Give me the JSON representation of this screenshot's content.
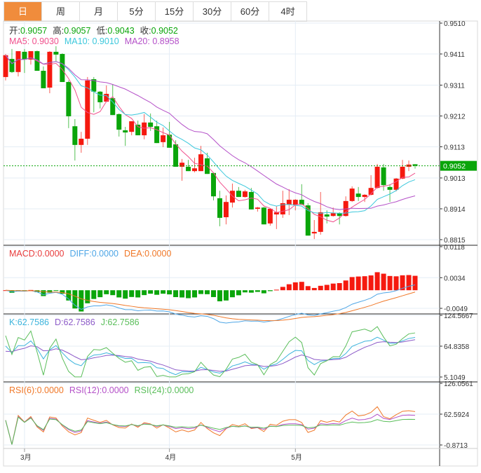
{
  "tabs": [
    {
      "label": "日",
      "active": true
    },
    {
      "label": "周"
    },
    {
      "label": "月"
    },
    {
      "label": "5分"
    },
    {
      "label": "15分"
    },
    {
      "label": "30分"
    },
    {
      "label": "60分"
    },
    {
      "label": "4时"
    }
  ],
  "ohlc_legend": {
    "open_label": "开:",
    "open": "0.9057",
    "high_label": "高:",
    "high": "0.9057",
    "low_label": "低:",
    "low": "0.9043",
    "close_label": "收:",
    "close": "0.9052"
  },
  "ma_legend": {
    "ma5": "MA5: 0.9030",
    "ma10": "MA10: 0.9010",
    "ma20": "MA20: 0.8958"
  },
  "macd_legend": {
    "macd": "MACD:0.0000",
    "diff": "DIFF:0.0000",
    "dea": "DEA:0.0000"
  },
  "kdj_legend": {
    "k": "K:62.7586",
    "d": "D:62.7586",
    "j": "J:62.7586"
  },
  "rsi_legend": {
    "rsi6": "RSI(6):0.0000",
    "rsi12": "RSI(12):0.0000",
    "rsi24": "RSI(24):0.0000"
  },
  "colors": {
    "up": "#f5190f",
    "down": "#0aa50a",
    "ma5": "#f0508c",
    "ma10": "#3cc8dc",
    "ma20": "#b450c8",
    "accent": "#f08c3c"
  },
  "chart_data": {
    "type": "candlestick",
    "price_axis": {
      "ticks": [
        "0.9510",
        "0.9411",
        "0.9311",
        "0.9212",
        "0.9113",
        "0.9013",
        "0.8914",
        "0.8815"
      ],
      "range": [
        0.8815,
        0.951
      ]
    },
    "current_price": "0.9052",
    "macd_axis": {
      "ticks": [
        "0.0118",
        "0.0034",
        "-0.0049"
      ],
      "range": [
        -0.0049,
        0.0118
      ]
    },
    "kdj_axis": {
      "ticks": [
        "124.5667",
        "64.8358",
        "5.1049"
      ],
      "range": [
        5.1049,
        124.5667
      ]
    },
    "rsi_axis": {
      "ticks": [
        "126.0561",
        "62.5924",
        "-0.8713"
      ],
      "range": [
        -0.8713,
        126.0561
      ]
    },
    "x_labels": [
      {
        "label": "3月",
        "index": 3
      },
      {
        "label": "4月",
        "index": 26
      },
      {
        "label": "5月",
        "index": 46
      }
    ],
    "candles": [
      [
        0.9337,
        0.9411,
        0.9326,
        0.9407
      ],
      [
        0.9395,
        0.9427,
        0.935,
        0.9353
      ],
      [
        0.9353,
        0.942,
        0.9339,
        0.942
      ],
      [
        0.9418,
        0.9427,
        0.935,
        0.9393
      ],
      [
        0.9393,
        0.942,
        0.9377,
        0.942
      ],
      [
        0.942,
        0.9422,
        0.9357,
        0.9357
      ],
      [
        0.9357,
        0.9371,
        0.9301,
        0.9301
      ],
      [
        0.9303,
        0.942,
        0.9285,
        0.9418
      ],
      [
        0.9418,
        0.9436,
        0.9386,
        0.9409
      ],
      [
        0.9411,
        0.9413,
        0.9321,
        0.9321
      ],
      [
        0.9321,
        0.9326,
        0.9173,
        0.9211
      ],
      [
        0.9179,
        0.9202,
        0.9069,
        0.9119
      ],
      [
        0.9119,
        0.9161,
        0.9094,
        0.9139
      ],
      [
        0.9139,
        0.9337,
        0.9119,
        0.9326
      ],
      [
        0.933,
        0.9337,
        0.9224,
        0.929
      ],
      [
        0.929,
        0.9292,
        0.9236,
        0.9256
      ],
      [
        0.9258,
        0.931,
        0.9256,
        0.9283
      ],
      [
        0.9269,
        0.9314,
        0.9215,
        0.9215
      ],
      [
        0.9218,
        0.922,
        0.9146,
        0.9168
      ],
      [
        0.9166,
        0.9177,
        0.9116,
        0.9159
      ],
      [
        0.9161,
        0.9195,
        0.915,
        0.9195
      ],
      [
        0.9184,
        0.9197,
        0.915,
        0.915
      ],
      [
        0.915,
        0.9218,
        0.9137,
        0.9191
      ],
      [
        0.9191,
        0.922,
        0.9164,
        0.9177
      ],
      [
        0.9179,
        0.9197,
        0.9125,
        0.9125
      ],
      [
        0.9128,
        0.9175,
        0.9112,
        0.915
      ],
      [
        0.9152,
        0.9193,
        0.911,
        0.911
      ],
      [
        0.9121,
        0.9134,
        0.9049,
        0.9049
      ],
      [
        0.9049,
        0.9074,
        0.9004,
        0.9062
      ],
      [
        0.9049,
        0.9071,
        0.9035,
        0.9035
      ],
      [
        0.9035,
        0.9078,
        0.9031,
        0.9044
      ],
      [
        0.9035,
        0.9116,
        0.9035,
        0.9089
      ],
      [
        0.9076,
        0.9094,
        0.9026,
        0.9026
      ],
      [
        0.9029,
        0.9031,
        0.8941,
        0.8954
      ],
      [
        0.8948,
        0.8972,
        0.8858,
        0.8885
      ],
      [
        0.8887,
        0.8957,
        0.8864,
        0.8936
      ],
      [
        0.8934,
        0.8995,
        0.8918,
        0.8972
      ],
      [
        0.8972,
        0.8984,
        0.8952,
        0.8952
      ],
      [
        0.8952,
        0.8975,
        0.895,
        0.897
      ],
      [
        0.8968,
        0.8981,
        0.8912,
        0.8912
      ],
      [
        0.8914,
        0.892,
        0.8905,
        0.8918
      ],
      [
        0.8918,
        0.892,
        0.8864,
        0.8864
      ],
      [
        0.8867,
        0.8914,
        0.886,
        0.8914
      ],
      [
        0.8896,
        0.8923,
        0.8849,
        0.8903
      ],
      [
        0.8896,
        0.8972,
        0.8885,
        0.8932
      ],
      [
        0.8927,
        0.8977,
        0.8894,
        0.8943
      ],
      [
        0.8927,
        0.8945,
        0.8909,
        0.8943
      ],
      [
        0.8943,
        0.8993,
        0.8927,
        0.8927
      ],
      [
        0.8925,
        0.8932,
        0.8828,
        0.8828
      ],
      [
        0.8835,
        0.8878,
        0.8817,
        0.884
      ],
      [
        0.884,
        0.8968,
        0.8831,
        0.8903
      ],
      [
        0.8896,
        0.8909,
        0.8867,
        0.8889
      ],
      [
        0.8891,
        0.8918,
        0.8889,
        0.89
      ],
      [
        0.89,
        0.8903,
        0.8864,
        0.8891
      ],
      [
        0.8891,
        0.8954,
        0.8889,
        0.8939
      ],
      [
        0.8939,
        0.8986,
        0.8936,
        0.8979
      ],
      [
        0.8963,
        0.8984,
        0.8939,
        0.8952
      ],
      [
        0.8952,
        0.8961,
        0.8936,
        0.8959
      ],
      [
        0.8959,
        0.9022,
        0.8957,
        0.8981
      ],
      [
        0.8981,
        0.9058,
        0.8979,
        0.9049
      ],
      [
        0.9047,
        0.9058,
        0.8972,
        0.899
      ],
      [
        0.8984,
        0.8993,
        0.8936,
        0.8975
      ],
      [
        0.8975,
        0.9013,
        0.897,
        0.9011
      ],
      [
        0.9011,
        0.9071,
        0.9009,
        0.9049
      ],
      [
        0.9049,
        0.9069,
        0.9035,
        0.9056
      ],
      [
        0.9057,
        0.9057,
        0.9043,
        0.9052
      ]
    ]
  }
}
